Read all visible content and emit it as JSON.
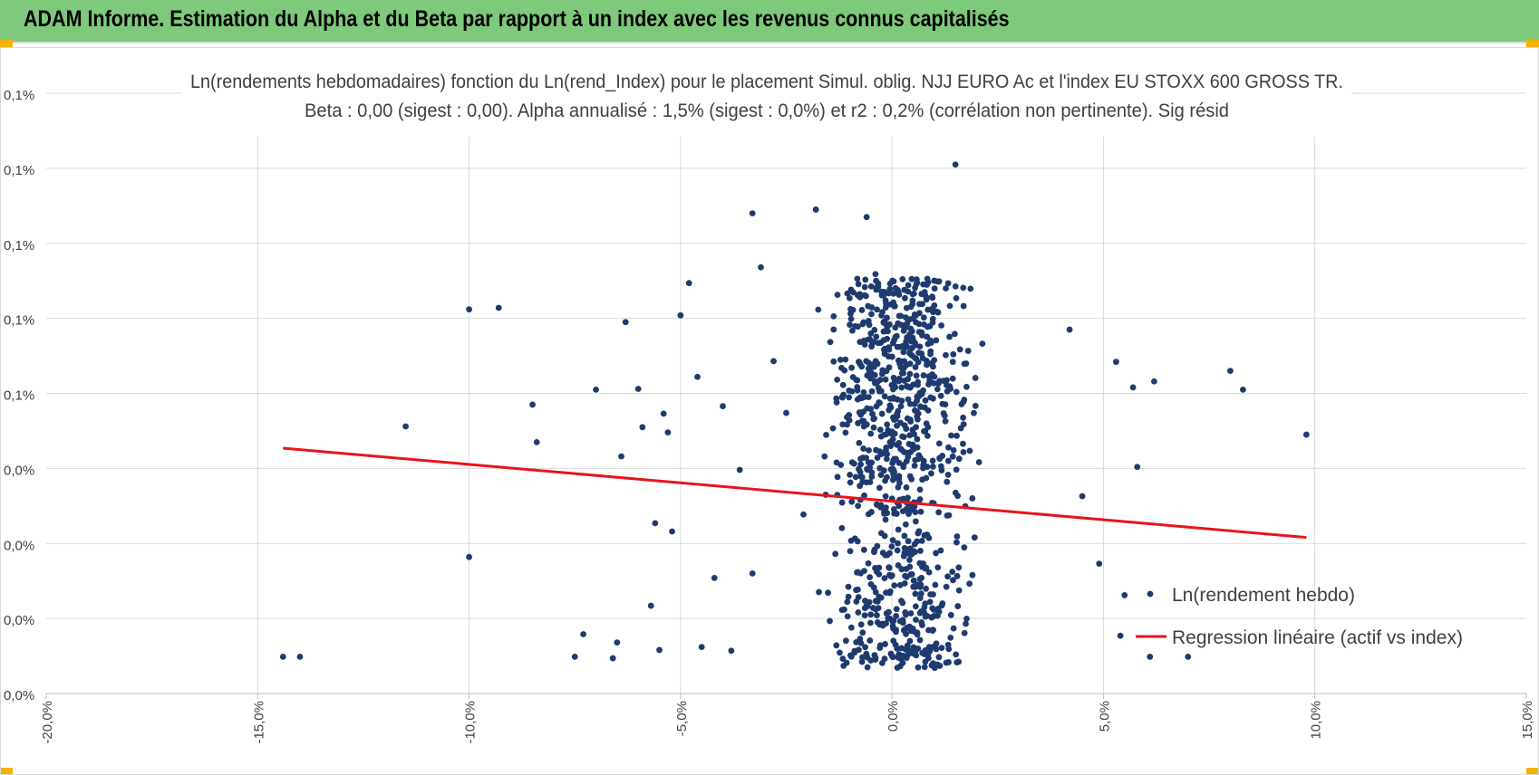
{
  "header": {
    "title": "ADAM Informe. Estimation du Alpha et du Beta par rapport à un index avec les revenus connus capitalisés"
  },
  "colors": {
    "header_bg": "#7ec97b",
    "points": "#1f3a6e",
    "regression": "#e8141b",
    "grid": "#d9d9d9",
    "corner_marker": "#f2b200"
  },
  "chart_data": {
    "type": "scatter",
    "title_line1": "Ln(rendements hebdomadaires) fonction du Ln(rend_Index) pour le placement Simul. oblig. NJJ EURO Ac et l'index EU STOXX 600 GROSS TR.",
    "title_line2": "Beta : 0,00 (sigest : 0,00). Alpha annualisé : 1,5% (sigest : 0,0%) et r2 : 0,2% (corrélation non pertinente). Sig résid",
    "xlim": [
      -20,
      15
    ],
    "ylim": [
      0,
      8
    ],
    "x_ticks": [
      -20,
      -15,
      -10,
      -5,
      0,
      5,
      10,
      15
    ],
    "x_tick_labels": [
      "-20,0%",
      "-15,0%",
      "-10,0%",
      "-5,0%",
      "0,0%",
      "5,0%",
      "10,0%",
      "15,0%"
    ],
    "y_ticks": [
      0,
      1,
      2,
      3,
      4,
      5,
      6,
      7,
      8
    ],
    "y_tick_labels": [
      "0,0%",
      "0,0%",
      "0,0%",
      "0,0%",
      "0,1%",
      "0,1%",
      "0,1%",
      "0,1%",
      "0,1%"
    ],
    "grid": true,
    "legend_position": "bottom-right",
    "legend": [
      {
        "label": "Ln(rendement hebdo)",
        "kind": "marker"
      },
      {
        "label": "Regression linéaire (actif vs index)",
        "kind": "line"
      }
    ],
    "regression": {
      "x": [
        -14.4,
        9.8
      ],
      "y": [
        3.27,
        2.08
      ]
    },
    "series": [
      {
        "name": "Ln(rendement hebdo)",
        "x": [
          -14.4,
          -14.0,
          -11.5,
          -10.0,
          -10.0,
          -9.3,
          -8.5,
          -8.4,
          -7.5,
          -7.3,
          -7.0,
          -6.6,
          -6.5,
          -6.4,
          -6.3,
          -6.0,
          -5.9,
          -5.7,
          -5.6,
          -5.5,
          -5.4,
          -5.3,
          -5.2,
          -5.0,
          -4.8,
          -4.6,
          -4.5,
          -4.2,
          -4.0,
          -3.8,
          -3.6,
          -3.3,
          -3.1,
          -2.8,
          -2.5,
          8.3,
          8.0,
          9.8,
          6.2,
          5.8,
          5.7,
          5.3,
          4.9,
          4.5,
          7.0,
          6.1,
          5.4,
          5.5,
          4.2,
          1.5,
          -0.6,
          -1.8,
          -3.3
        ],
        "y": [
          0.49,
          0.49,
          3.56,
          1.82,
          5.12,
          5.14,
          3.85,
          3.35,
          0.49,
          0.79,
          4.05,
          0.47,
          0.68,
          3.16,
          4.95,
          4.06,
          3.55,
          1.17,
          2.27,
          0.58,
          3.73,
          3.48,
          2.16,
          5.04,
          5.47,
          4.22,
          0.62,
          1.54,
          3.83,
          0.57,
          2.98,
          6.4,
          5.68,
          4.43,
          3.74,
          4.05,
          4.3,
          3.45,
          4.16,
          3.02,
          4.08,
          4.42,
          1.73,
          2.63,
          0.49,
          0.49,
          0.77,
          1.31,
          4.85,
          7.05,
          6.35,
          6.45,
          1.6
        ]
      }
    ]
  }
}
